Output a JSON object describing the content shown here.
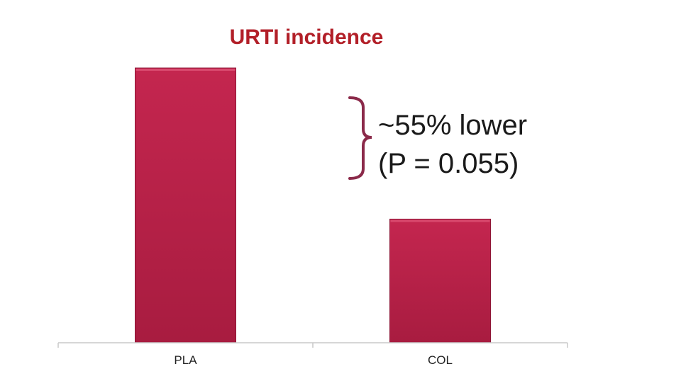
{
  "chart_data": {
    "type": "bar",
    "title": "URTI incidence",
    "categories": [
      "PLA",
      "COL"
    ],
    "values": [
      1.0,
      0.45
    ],
    "ylim": [
      0,
      1.0
    ],
    "xlabel": "",
    "ylabel": "",
    "grid": false,
    "legend": "none",
    "annotation": {
      "line1": "~55% lower",
      "line2": "(P = 0.055)"
    },
    "colors": {
      "bar": "#c0224c",
      "bar_edge": "#8e1636",
      "title": "#b21f28",
      "bracket": "#8b2a4a",
      "axis": "#c8c8c8"
    }
  }
}
